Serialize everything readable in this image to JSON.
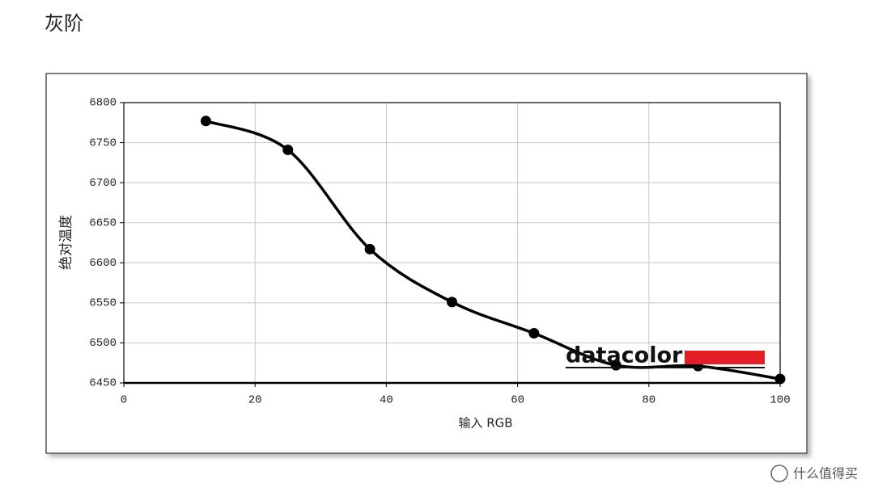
{
  "chart_data": {
    "type": "line",
    "title": "灰阶",
    "y_label": "绝对温度",
    "x_label": "输入 RGB",
    "x": [
      12.5,
      25,
      37.5,
      50,
      62.5,
      75,
      87.5,
      100
    ],
    "series": [
      {
        "color": "#000000",
        "values": [
          6777,
          6741,
          6617,
          6551,
          6512,
          6472,
          6471,
          6455
        ]
      }
    ],
    "xlim": [
      0,
      100
    ],
    "xticks": [
      0,
      20,
      40,
      60,
      80,
      100
    ],
    "ylim": [
      6450,
      6800
    ],
    "yticks": [
      6450,
      6500,
      6550,
      6600,
      6650,
      6700,
      6750,
      6800
    ],
    "grid": true,
    "smooth": true,
    "watermark": "datacolor",
    "site_watermark": "什么值得买"
  }
}
